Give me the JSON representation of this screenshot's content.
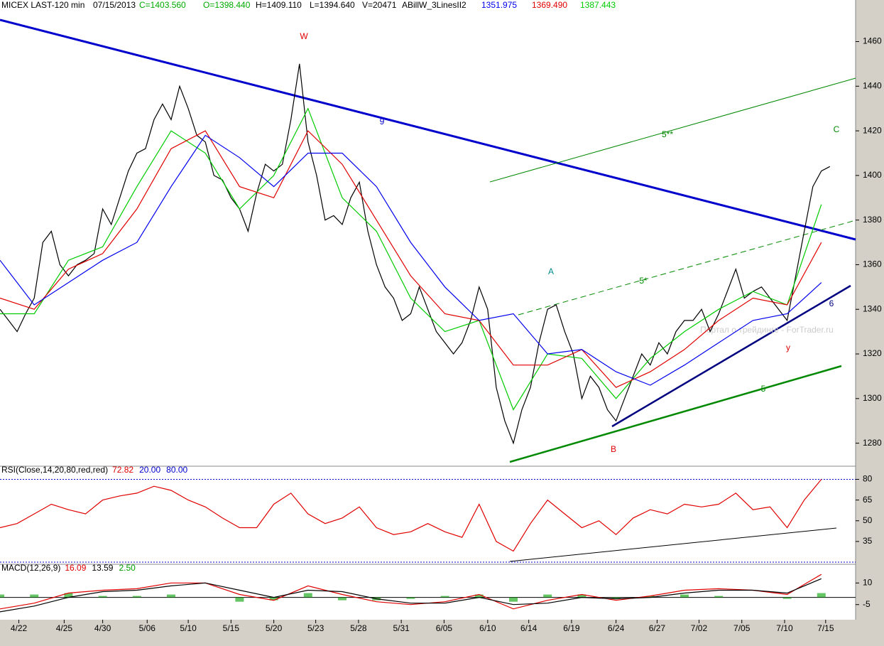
{
  "header": {
    "symbol": "MICEX LAST-120 min",
    "date": "07/15/2013",
    "close": "C=1403.560",
    "open": "O=1398.440",
    "high": "H=1409.110",
    "low": "L=1394.640",
    "volume": "V=20471",
    "indicator": "ABillW_3LinesII2",
    "ma_slow": "1351.975",
    "ma_mid": "1369.490",
    "ma_fast": "1387.443",
    "watermark": "Портал о трейдинге - ForTrader.ru"
  },
  "annotations": [
    "W",
    "9",
    "5**",
    "C",
    "A",
    "5*",
    "6",
    "y",
    "B",
    "5"
  ],
  "chart_data": [
    {
      "type": "line",
      "xlim": [
        0,
        100
      ],
      "ylim": [
        1270,
        1478
      ],
      "yticks": [
        1280,
        1300,
        1320,
        1340,
        1360,
        1380,
        1400,
        1420,
        1440,
        1460
      ],
      "series": [
        {
          "color": "#000000",
          "x": [
            0,
            1,
            2,
            3,
            4,
            5,
            6,
            7,
            8,
            9,
            10,
            11,
            12,
            13,
            14,
            15,
            16,
            17,
            18,
            19,
            20,
            21,
            22,
            23,
            24,
            25,
            26,
            27,
            28,
            29,
            30,
            31,
            32,
            33,
            34,
            35,
            36,
            37,
            38,
            39,
            40,
            41,
            42,
            43,
            44,
            45,
            46,
            47,
            48,
            49,
            50,
            51,
            52,
            53,
            54,
            55,
            56,
            57,
            58,
            59,
            60,
            61,
            62,
            63,
            64,
            65,
            66,
            67,
            68,
            69,
            70,
            71,
            72,
            73,
            74,
            75,
            76,
            77,
            78,
            79,
            80,
            81,
            82,
            83,
            84,
            85,
            86,
            87,
            88,
            89,
            90,
            91,
            92,
            93,
            94,
            95,
            96,
            97
          ],
          "values": [
            1340,
            1335,
            1330,
            1338,
            1345,
            1370,
            1375,
            1360,
            1355,
            1360,
            1362,
            1365,
            1385,
            1378,
            1390,
            1402,
            1410,
            1412,
            1425,
            1432,
            1425,
            1440,
            1430,
            1418,
            1415,
            1400,
            1398,
            1390,
            1385,
            1375,
            1392,
            1405,
            1402,
            1405,
            1425,
            1450,
            1415,
            1400,
            1380,
            1382,
            1378,
            1390,
            1397,
            1375,
            1360,
            1350,
            1345,
            1335,
            1338,
            1350,
            1340,
            1330,
            1325,
            1320,
            1325,
            1335,
            1350,
            1340,
            1305,
            1290,
            1280,
            1295,
            1305,
            1325,
            1340,
            1342,
            1330,
            1320,
            1300,
            1310,
            1305,
            1295,
            1290,
            1300,
            1310,
            1320,
            1315,
            1325,
            1320,
            1330,
            1335,
            1335,
            1340,
            1330,
            1338,
            1348,
            1358,
            1345,
            1348,
            1350,
            1345,
            1340,
            1335,
            1355,
            1375,
            1395,
            1402,
            1404
          ]
        },
        {
          "color": "#00cc00",
          "x": [
            0,
            4,
            8,
            12,
            16,
            20,
            24,
            28,
            32,
            36,
            40,
            44,
            48,
            52,
            56,
            60,
            64,
            68,
            72,
            76,
            80,
            84,
            88,
            92,
            96
          ],
          "values": [
            1338,
            1338,
            1362,
            1368,
            1395,
            1420,
            1410,
            1385,
            1400,
            1430,
            1390,
            1375,
            1345,
            1330,
            1335,
            1295,
            1320,
            1318,
            1300,
            1318,
            1330,
            1340,
            1348,
            1342,
            1387
          ]
        },
        {
          "color": "#e00000",
          "x": [
            0,
            4,
            8,
            12,
            16,
            20,
            24,
            28,
            32,
            36,
            40,
            44,
            48,
            52,
            56,
            60,
            64,
            68,
            72,
            76,
            80,
            84,
            88,
            92,
            96
          ],
          "values": [
            1345,
            1340,
            1358,
            1365,
            1385,
            1412,
            1420,
            1395,
            1390,
            1420,
            1405,
            1380,
            1355,
            1338,
            1335,
            1315,
            1315,
            1322,
            1305,
            1312,
            1322,
            1335,
            1345,
            1342,
            1370
          ]
        },
        {
          "color": "#0000ee",
          "x": [
            0,
            4,
            8,
            12,
            16,
            20,
            24,
            28,
            32,
            36,
            40,
            44,
            48,
            52,
            56,
            60,
            64,
            68,
            72,
            76,
            80,
            84,
            88,
            92,
            96
          ],
          "values": [
            1362,
            1342,
            1352,
            1362,
            1370,
            1395,
            1418,
            1408,
            1395,
            1410,
            1410,
            1395,
            1370,
            1350,
            1335,
            1338,
            1320,
            1322,
            1312,
            1306,
            1315,
            1325,
            1335,
            1338,
            1352
          ]
        }
      ]
    },
    {
      "type": "line",
      "title": "RSI(Close,14,20,80,red,red)",
      "value_texts": [
        "72.82",
        "20.00",
        "80.00"
      ],
      "xlim": [
        0,
        100
      ],
      "ylim": [
        19,
        89
      ],
      "yticks": [
        35,
        50,
        65,
        80
      ],
      "levels": [
        20,
        80
      ],
      "series": [
        {
          "color": "#e00000",
          "x": [
            0,
            2,
            4,
            6,
            8,
            10,
            12,
            14,
            16,
            18,
            20,
            22,
            24,
            26,
            28,
            30,
            32,
            34,
            36,
            38,
            40,
            42,
            44,
            46,
            48,
            50,
            52,
            54,
            56,
            58,
            60,
            62,
            64,
            66,
            68,
            70,
            72,
            74,
            76,
            78,
            80,
            82,
            84,
            86,
            88,
            90,
            92,
            94,
            96
          ],
          "values": [
            45,
            48,
            55,
            62,
            58,
            55,
            65,
            68,
            70,
            75,
            72,
            65,
            60,
            52,
            45,
            45,
            62,
            70,
            55,
            48,
            52,
            60,
            45,
            40,
            42,
            48,
            42,
            38,
            62,
            35,
            28,
            48,
            65,
            55,
            45,
            50,
            40,
            52,
            58,
            55,
            62,
            60,
            62,
            70,
            58,
            60,
            45,
            65,
            80
          ]
        }
      ]
    },
    {
      "type": "line",
      "title": "MACD(12,26,9)",
      "value_texts": [
        "16.09",
        "13.59",
        "2.50"
      ],
      "xlim": [
        0,
        100
      ],
      "ylim": [
        -15,
        22.5
      ],
      "yticks": [
        -5,
        10
      ],
      "xticks": [
        {
          "value": 2.2,
          "label": "4/22"
        },
        {
          "value": 7.5,
          "label": "4/25"
        },
        {
          "value": 12,
          "label": "4/30"
        },
        {
          "value": 17.2,
          "label": "5/06"
        },
        {
          "value": 22,
          "label": "5/10"
        },
        {
          "value": 27,
          "label": "5/15"
        },
        {
          "value": 32,
          "label": "5/20"
        },
        {
          "value": 36.9,
          "label": "5/23"
        },
        {
          "value": 41.9,
          "label": "5/28"
        },
        {
          "value": 46.9,
          "label": "5/31"
        },
        {
          "value": 51.9,
          "label": "6/05"
        },
        {
          "value": 57,
          "label": "6/10"
        },
        {
          "value": 61.8,
          "label": "6/14"
        },
        {
          "value": 66.8,
          "label": "6/19"
        },
        {
          "value": 72,
          "label": "6/24"
        },
        {
          "value": 76.8,
          "label": "6/27"
        },
        {
          "value": 81.7,
          "label": "7/02"
        },
        {
          "value": 86.7,
          "label": "7/05"
        },
        {
          "value": 91.7,
          "label": "7/10"
        },
        {
          "value": 96.5,
          "label": "7/15"
        }
      ],
      "series": [
        {
          "type": "bar",
          "color": "#00a000",
          "x": [
            0,
            4,
            8,
            12,
            16,
            20,
            24,
            28,
            32,
            36,
            40,
            44,
            48,
            52,
            56,
            60,
            64,
            68,
            72,
            76,
            80,
            84,
            88,
            92,
            96
          ],
          "values": [
            2,
            2,
            3,
            1,
            1,
            2,
            0,
            -3,
            -2,
            3,
            -2,
            -2,
            -1,
            1,
            2,
            -3,
            2,
            2,
            -1,
            1,
            2,
            1,
            0,
            -1,
            3
          ]
        },
        {
          "color": "#e00000",
          "x": [
            0,
            4,
            8,
            12,
            16,
            20,
            24,
            28,
            32,
            36,
            40,
            44,
            48,
            52,
            56,
            60,
            64,
            68,
            72,
            76,
            80,
            84,
            88,
            92,
            96
          ],
          "values": [
            -8,
            -4,
            3,
            5,
            6,
            10,
            10,
            2,
            -2,
            8,
            2,
            -3,
            -5,
            -3,
            2,
            -8,
            -2,
            2,
            -2,
            1,
            5,
            6,
            5,
            2,
            16
          ]
        },
        {
          "color": "#000000",
          "x": [
            0,
            4,
            8,
            12,
            16,
            20,
            24,
            28,
            32,
            36,
            40,
            44,
            48,
            52,
            56,
            60,
            64,
            68,
            72,
            76,
            80,
            84,
            88,
            92,
            96
          ],
          "values": [
            -10,
            -6,
            0,
            4,
            5,
            8,
            10,
            5,
            0,
            5,
            4,
            -1,
            -4,
            -4,
            0,
            -5,
            -4,
            0,
            -1,
            0,
            3,
            5,
            5,
            3,
            13
          ]
        }
      ]
    }
  ]
}
